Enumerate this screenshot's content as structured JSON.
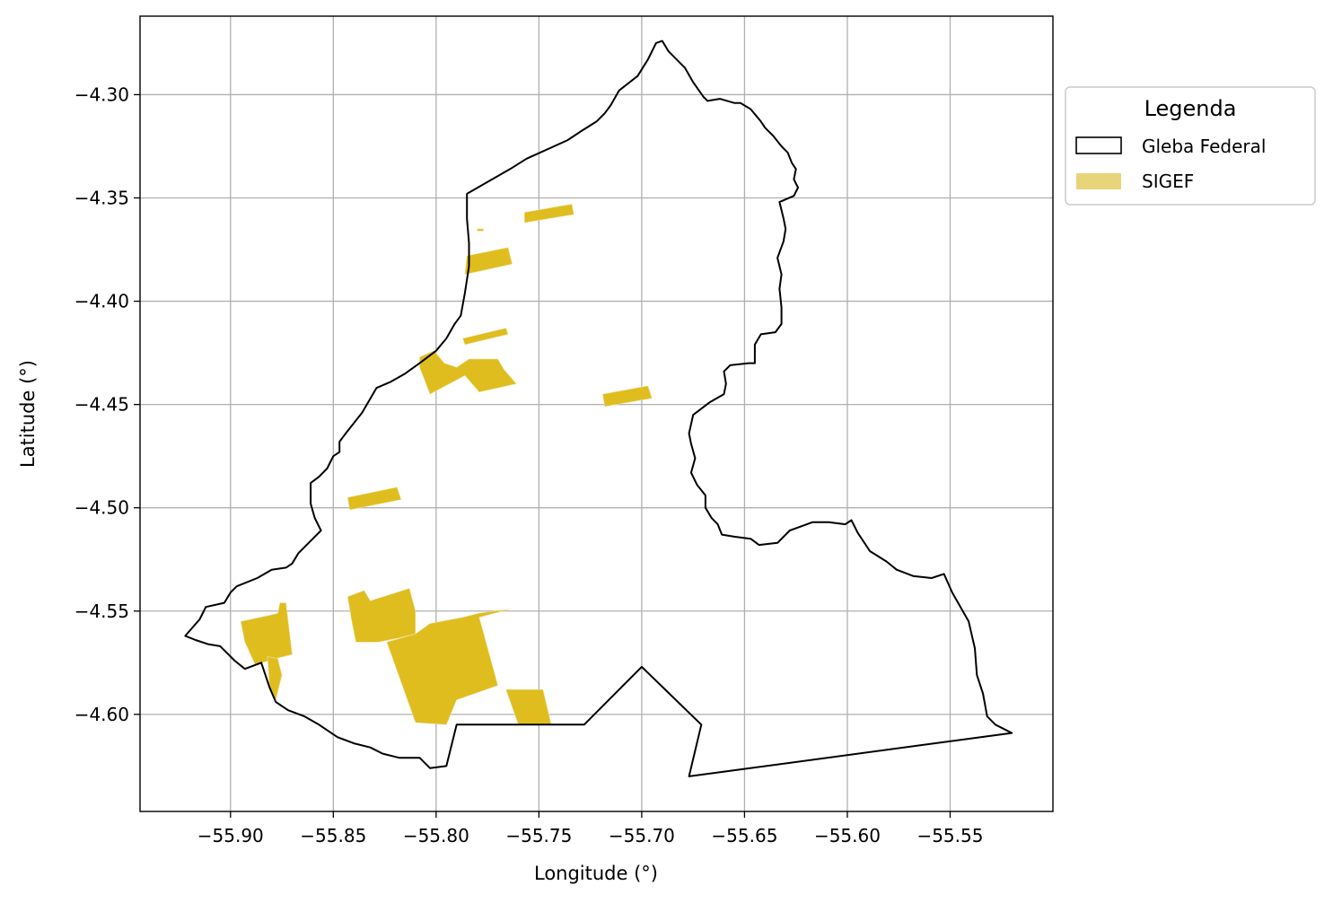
{
  "chart_data": {
    "type": "map",
    "xlabel": "Longitude (°)",
    "ylabel": "Latitude (°)",
    "xlim": [
      -55.944,
      -55.5
    ],
    "ylim": [
      -4.647,
      -4.262
    ],
    "xticks": [
      -55.9,
      -55.85,
      -55.8,
      -55.75,
      -55.7,
      -55.65,
      -55.6,
      -55.55
    ],
    "xtick_labels": [
      "−55.90",
      "−55.85",
      "−55.80",
      "−55.75",
      "−55.70",
      "−55.65",
      "−55.60",
      "−55.55"
    ],
    "yticks": [
      -4.3,
      -4.35,
      -4.4,
      -4.45,
      -4.5,
      -4.55,
      -4.6
    ],
    "ytick_labels": [
      "−4.30",
      "−4.35",
      "−4.40",
      "−4.45",
      "−4.50",
      "−4.55",
      "−4.60"
    ],
    "grid": true,
    "legend": {
      "title": "Legenda",
      "placement": "outside-upper-right",
      "entries": [
        {
          "label": "Gleba Federal",
          "style": "outline",
          "color": "#000000"
        },
        {
          "label": "SIGEF",
          "style": "fill",
          "color": "#e8d57a"
        }
      ]
    },
    "layers": [
      {
        "name": "Gleba Federal",
        "color": "#000000",
        "polygon": [
          [
            -55.922,
            -4.562
          ],
          [
            -55.915,
            -4.554
          ],
          [
            -55.912,
            -4.548
          ],
          [
            -55.903,
            -4.546
          ],
          [
            -55.9,
            -4.541
          ],
          [
            -55.897,
            -4.538
          ],
          [
            -55.887,
            -4.534
          ],
          [
            -55.88,
            -4.53
          ],
          [
            -55.873,
            -4.529
          ],
          [
            -55.87,
            -4.527
          ],
          [
            -55.867,
            -4.522
          ],
          [
            -55.859,
            -4.514
          ],
          [
            -55.856,
            -4.511
          ],
          [
            -55.859,
            -4.505
          ],
          [
            -55.861,
            -4.498
          ],
          [
            -55.861,
            -4.488
          ],
          [
            -55.857,
            -4.485
          ],
          [
            -55.853,
            -4.481
          ],
          [
            -55.85,
            -4.475
          ],
          [
            -55.847,
            -4.473
          ],
          [
            -55.847,
            -4.468
          ],
          [
            -55.844,
            -4.464
          ],
          [
            -55.836,
            -4.454
          ],
          [
            -55.829,
            -4.442
          ],
          [
            -55.822,
            -4.439
          ],
          [
            -55.815,
            -4.435
          ],
          [
            -55.808,
            -4.43
          ],
          [
            -55.8,
            -4.424
          ],
          [
            -55.795,
            -4.418
          ],
          [
            -55.791,
            -4.411
          ],
          [
            -55.788,
            -4.407
          ],
          [
            -55.786,
            -4.396
          ],
          [
            -55.784,
            -4.383
          ],
          [
            -55.784,
            -4.376
          ],
          [
            -55.784,
            -4.372
          ],
          [
            -55.785,
            -4.36
          ],
          [
            -55.785,
            -4.348
          ],
          [
            -55.764,
            -4.336
          ],
          [
            -55.756,
            -4.331
          ],
          [
            -55.736,
            -4.322
          ],
          [
            -55.73,
            -4.318
          ],
          [
            -55.722,
            -4.313
          ],
          [
            -55.718,
            -4.309
          ],
          [
            -55.715,
            -4.305
          ],
          [
            -55.711,
            -4.298
          ],
          [
            -55.702,
            -4.291
          ],
          [
            -55.697,
            -4.283
          ],
          [
            -55.693,
            -4.275
          ],
          [
            -55.69,
            -4.274
          ],
          [
            -55.687,
            -4.279
          ],
          [
            -55.683,
            -4.283
          ],
          [
            -55.679,
            -4.287
          ],
          [
            -55.675,
            -4.294
          ],
          [
            -55.67,
            -4.301
          ],
          [
            -55.668,
            -4.303
          ],
          [
            -55.662,
            -4.302
          ],
          [
            -55.655,
            -4.304
          ],
          [
            -55.652,
            -4.304
          ],
          [
            -55.647,
            -4.307
          ],
          [
            -55.642,
            -4.313
          ],
          [
            -55.64,
            -4.316
          ],
          [
            -55.636,
            -4.32
          ],
          [
            -55.632,
            -4.325
          ],
          [
            -55.629,
            -4.328
          ],
          [
            -55.627,
            -4.333
          ],
          [
            -55.625,
            -4.336
          ],
          [
            -55.626,
            -4.341
          ],
          [
            -55.624,
            -4.345
          ],
          [
            -55.626,
            -4.349
          ],
          [
            -55.633,
            -4.352
          ],
          [
            -55.631,
            -4.36
          ],
          [
            -55.63,
            -4.365
          ],
          [
            -55.631,
            -4.371
          ],
          [
            -55.634,
            -4.379
          ],
          [
            -55.632,
            -4.387
          ],
          [
            -55.633,
            -4.394
          ],
          [
            -55.632,
            -4.403
          ],
          [
            -55.632,
            -4.411
          ],
          [
            -55.635,
            -4.415
          ],
          [
            -55.642,
            -4.416
          ],
          [
            -55.645,
            -4.421
          ],
          [
            -55.645,
            -4.43
          ],
          [
            -55.648,
            -4.43
          ],
          [
            -55.657,
            -4.431
          ],
          [
            -55.66,
            -4.434
          ],
          [
            -55.659,
            -4.44
          ],
          [
            -55.66,
            -4.445
          ],
          [
            -55.667,
            -4.449
          ],
          [
            -55.675,
            -4.455
          ],
          [
            -55.677,
            -4.464
          ],
          [
            -55.676,
            -4.469
          ],
          [
            -55.674,
            -4.476
          ],
          [
            -55.676,
            -4.483
          ],
          [
            -55.673,
            -4.489
          ],
          [
            -55.669,
            -4.494
          ],
          [
            -55.669,
            -4.5
          ],
          [
            -55.666,
            -4.505
          ],
          [
            -55.663,
            -4.508
          ],
          [
            -55.661,
            -4.513
          ],
          [
            -55.655,
            -4.514
          ],
          [
            -55.647,
            -4.515
          ],
          [
            -55.643,
            -4.518
          ],
          [
            -55.634,
            -4.517
          ],
          [
            -55.628,
            -4.511
          ],
          [
            -55.617,
            -4.507
          ],
          [
            -55.609,
            -4.507
          ],
          [
            -55.601,
            -4.508
          ],
          [
            -55.598,
            -4.506
          ],
          [
            -55.595,
            -4.512
          ],
          [
            -55.589,
            -4.521
          ],
          [
            -55.581,
            -4.526
          ],
          [
            -55.576,
            -4.53
          ],
          [
            -55.568,
            -4.533
          ],
          [
            -55.559,
            -4.534
          ],
          [
            -55.553,
            -4.532
          ],
          [
            -55.549,
            -4.541
          ],
          [
            -55.541,
            -4.555
          ],
          [
            -55.538,
            -4.568
          ],
          [
            -55.537,
            -4.581
          ],
          [
            -55.534,
            -4.59
          ],
          [
            -55.532,
            -4.601
          ],
          [
            -55.528,
            -4.605
          ],
          [
            -55.52,
            -4.609
          ],
          [
            -55.677,
            -4.63
          ],
          [
            -55.671,
            -4.605
          ],
          [
            -55.7,
            -4.577
          ],
          [
            -55.728,
            -4.605
          ],
          [
            -55.79,
            -4.605
          ],
          [
            -55.795,
            -4.625
          ],
          [
            -55.803,
            -4.626
          ],
          [
            -55.808,
            -4.621
          ],
          [
            -55.818,
            -4.621
          ],
          [
            -55.826,
            -4.619
          ],
          [
            -55.832,
            -4.616
          ],
          [
            -55.84,
            -4.614
          ],
          [
            -55.848,
            -4.611
          ],
          [
            -55.857,
            -4.605
          ],
          [
            -55.864,
            -4.601
          ],
          [
            -55.872,
            -4.598
          ],
          [
            -55.878,
            -4.594
          ],
          [
            -55.881,
            -4.587
          ],
          [
            -55.885,
            -4.575
          ],
          [
            -55.893,
            -4.578
          ],
          [
            -55.898,
            -4.574
          ],
          [
            -55.905,
            -4.567
          ],
          [
            -55.911,
            -4.566
          ],
          [
            -55.917,
            -4.564
          ],
          [
            -55.922,
            -4.562
          ]
        ]
      },
      {
        "name": "SIGEF",
        "color": "#e8d57a",
        "polygons": [
          [
            [
              -55.757,
              -4.357
            ],
            [
              -55.734,
              -4.353
            ],
            [
              -55.733,
              -4.358
            ],
            [
              -55.757,
              -4.362
            ]
          ],
          [
            [
              -55.78,
              -4.365
            ],
            [
              -55.777,
              -4.365
            ],
            [
              -55.777,
              -4.366
            ],
            [
              -55.78,
              -4.366
            ]
          ],
          [
            [
              -55.785,
              -4.378
            ],
            [
              -55.765,
              -4.374
            ],
            [
              -55.763,
              -4.382
            ],
            [
              -55.786,
              -4.387
            ]
          ],
          [
            [
              -55.787,
              -4.418
            ],
            [
              -55.766,
              -4.413
            ],
            [
              -55.765,
              -4.416
            ],
            [
              -55.786,
              -4.421
            ]
          ],
          [
            [
              -55.808,
              -4.427
            ],
            [
              -55.801,
              -4.424
            ],
            [
              -55.796,
              -4.43
            ],
            [
              -55.79,
              -4.432
            ],
            [
              -55.784,
              -4.428
            ],
            [
              -55.77,
              -4.428
            ],
            [
              -55.767,
              -4.433
            ],
            [
              -55.761,
              -4.44
            ],
            [
              -55.779,
              -4.444
            ],
            [
              -55.786,
              -4.436
            ],
            [
              -55.803,
              -4.445
            ],
            [
              -55.808,
              -4.432
            ]
          ],
          [
            [
              -55.719,
              -4.445
            ],
            [
              -55.697,
              -4.441
            ],
            [
              -55.695,
              -4.447
            ],
            [
              -55.718,
              -4.451
            ]
          ],
          [
            [
              -55.843,
              -4.495
            ],
            [
              -55.819,
              -4.49
            ],
            [
              -55.817,
              -4.496
            ],
            [
              -55.842,
              -4.501
            ]
          ],
          [
            [
              -55.895,
              -4.555
            ],
            [
              -55.881,
              -4.552
            ],
            [
              -55.877,
              -4.551
            ],
            [
              -55.876,
              -4.546
            ],
            [
              -55.873,
              -4.546
            ],
            [
              -55.87,
              -4.571
            ],
            [
              -55.878,
              -4.573
            ],
            [
              -55.888,
              -4.576
            ],
            [
              -55.893,
              -4.565
            ]
          ],
          [
            [
              -55.882,
              -4.572
            ],
            [
              -55.877,
              -4.573
            ],
            [
              -55.875,
              -4.581
            ],
            [
              -55.878,
              -4.593
            ],
            [
              -55.881,
              -4.587
            ]
          ],
          [
            [
              -55.843,
              -4.543
            ],
            [
              -55.835,
              -4.54
            ],
            [
              -55.832,
              -4.545
            ],
            [
              -55.813,
              -4.539
            ],
            [
              -55.81,
              -4.55
            ],
            [
              -55.81,
              -4.561
            ],
            [
              -55.818,
              -4.563
            ],
            [
              -55.828,
              -4.565
            ],
            [
              -55.839,
              -4.565
            ],
            [
              -55.841,
              -4.555
            ]
          ],
          [
            [
              -55.81,
              -4.561
            ],
            [
              -55.803,
              -4.556
            ],
            [
              -55.787,
              -4.553
            ],
            [
              -55.779,
              -4.551
            ],
            [
              -55.764,
              -4.549
            ],
            [
              -55.779,
              -4.553
            ],
            [
              -55.77,
              -4.586
            ],
            [
              -55.79,
              -4.593
            ],
            [
              -55.795,
              -4.605
            ],
            [
              -55.81,
              -4.604
            ],
            [
              -55.824,
              -4.565
            ]
          ],
          [
            [
              -55.766,
              -4.588
            ],
            [
              -55.748,
              -4.588
            ],
            [
              -55.744,
              -4.605
            ],
            [
              -55.76,
              -4.605
            ]
          ]
        ]
      }
    ]
  }
}
